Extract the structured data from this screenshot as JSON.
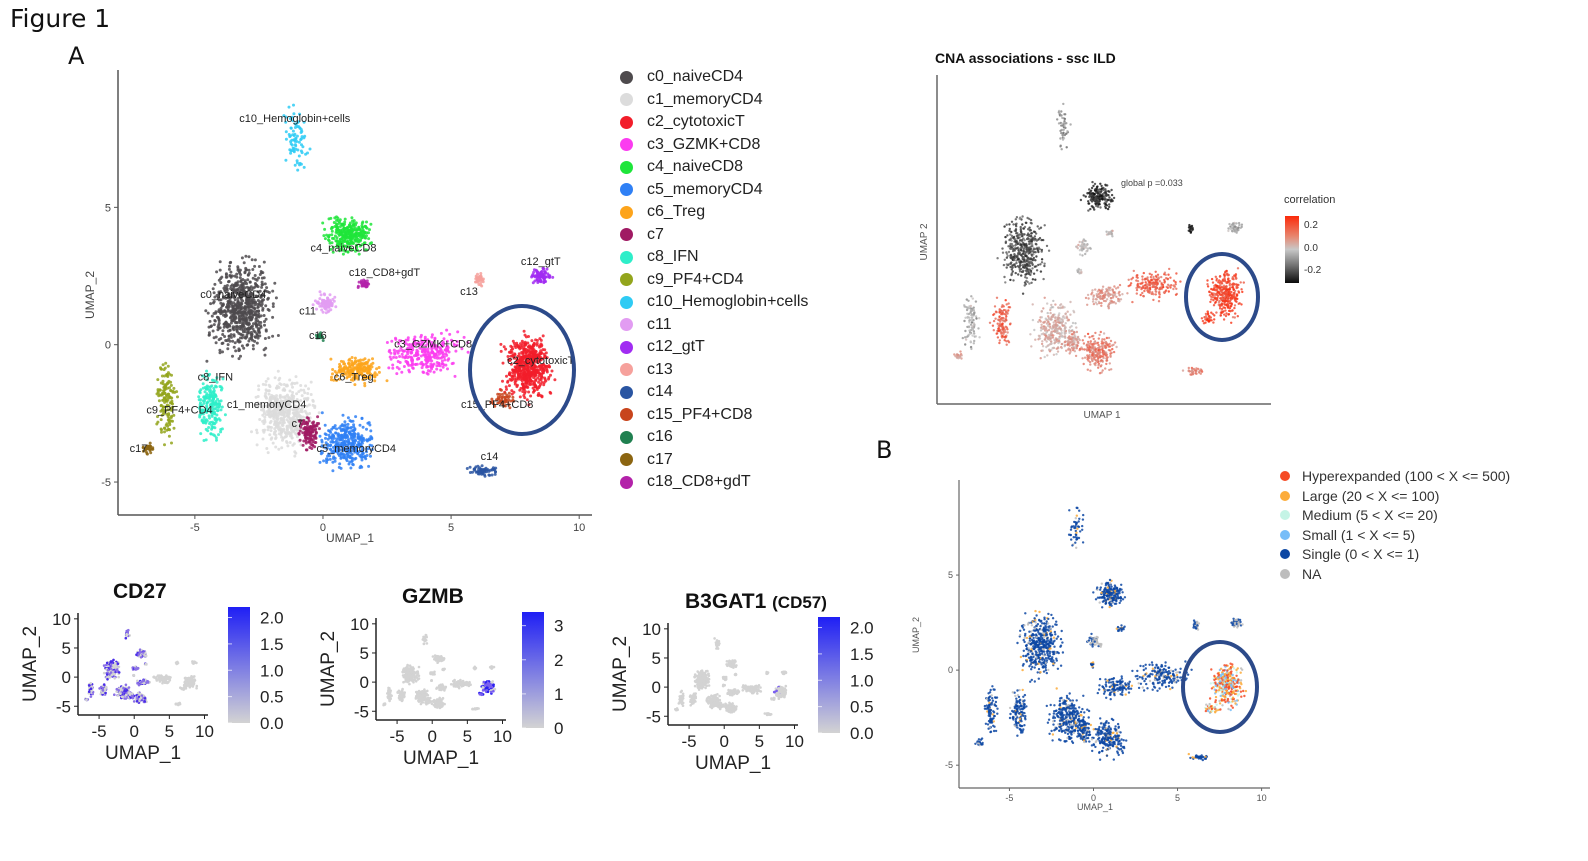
{
  "figure": {
    "title": "Figure 1",
    "panel_a_label": "A",
    "panel_b_label": "B"
  },
  "chart_data": [
    {
      "id": "umap-clusters",
      "type": "scatter",
      "title": "",
      "xlabel": "UMAP_1",
      "ylabel": "UMAP_2",
      "xlim": [
        -8,
        10.5
      ],
      "ylim": [
        -6.2,
        10
      ],
      "xticks": [
        -5,
        0,
        5,
        10
      ],
      "yticks": [
        -5,
        0,
        5
      ],
      "grid": false,
      "legend_position": "right",
      "annotation": "circle around c2_cytotoxicT cluster",
      "clusters": [
        {
          "name": "c0_naiveCD4",
          "color": "#4e4a4d",
          "cx": -3.2,
          "cy": 1.3,
          "label_x": -3.5,
          "label_y": 1.7
        },
        {
          "name": "c1_memoryCD4",
          "color": "#dcdcdc",
          "cx": -1.5,
          "cy": -2.5,
          "label_x": -2.2,
          "label_y": -2.3
        },
        {
          "name": "c2_cytotoxicT",
          "color": "#f21d2a",
          "cx": 8.0,
          "cy": -0.8,
          "label_x": 8.5,
          "label_y": -0.7
        },
        {
          "name": "c3_GZMK+CD8",
          "color": "#fb3cf0",
          "cx": 4.0,
          "cy": -0.3,
          "label_x": 4.3,
          "label_y": -0.1
        },
        {
          "name": "c4_naiveCD8",
          "color": "#1ee53a",
          "cx": 1.0,
          "cy": 4.0,
          "label_x": 0.8,
          "label_y": 3.4
        },
        {
          "name": "c5_memoryCD4",
          "color": "#2f80f5",
          "cx": 0.9,
          "cy": -3.6,
          "label_x": 1.3,
          "label_y": -3.9
        },
        {
          "name": "c6_Treg",
          "color": "#fda41b",
          "cx": 1.3,
          "cy": -0.9,
          "label_x": 1.2,
          "label_y": -1.3
        },
        {
          "name": "c7",
          "color": "#a01a63",
          "cx": -0.5,
          "cy": -3.2,
          "label_x": -1.0,
          "label_y": -3.0
        },
        {
          "name": "c8_IFN",
          "color": "#2eeec9",
          "cx": -4.4,
          "cy": -2.2,
          "label_x": -4.2,
          "label_y": -1.3
        },
        {
          "name": "c9_PF4+CD4",
          "color": "#93a51c",
          "cx": -6.1,
          "cy": -2.0,
          "label_x": -5.6,
          "label_y": -2.5
        },
        {
          "name": "c10_Hemoglobin+cells",
          "color": "#2ecbf4",
          "cx": -1.0,
          "cy": 7.5,
          "label_x": -1.1,
          "label_y": 8.1
        },
        {
          "name": "c11",
          "color": "#e29cf2",
          "cx": 0.1,
          "cy": 1.5,
          "label_x": -0.6,
          "label_y": 1.1
        },
        {
          "name": "c12_gtT",
          "color": "#a12cf2",
          "cx": 8.5,
          "cy": 2.5,
          "label_x": 8.5,
          "label_y": 2.9
        },
        {
          "name": "c13",
          "color": "#f6a19c",
          "cx": 6.1,
          "cy": 2.4,
          "label_x": 5.7,
          "label_y": 1.8
        },
        {
          "name": "c14",
          "color": "#2a55a2",
          "cx": 6.3,
          "cy": -4.6,
          "label_x": 6.5,
          "label_y": -4.2
        },
        {
          "name": "c15_PF4+CD8",
          "color": "#c8441c",
          "cx": 7.0,
          "cy": -2.0,
          "label_x": 6.8,
          "label_y": -2.3
        },
        {
          "name": "c16",
          "color": "#208050",
          "cx": -0.1,
          "cy": 0.3,
          "label_x": -0.2,
          "label_y": 0.2
        },
        {
          "name": "c17",
          "color": "#8c6511",
          "cx": -6.8,
          "cy": -3.8,
          "label_x": -7.2,
          "label_y": -3.9
        },
        {
          "name": "c18_CD8+gdT",
          "color": "#b322a9",
          "cx": 1.6,
          "cy": 2.2,
          "label_x": 2.4,
          "label_y": 2.5
        }
      ]
    },
    {
      "id": "cna-associations",
      "type": "scatter",
      "title": "CNA associations - ssc ILD",
      "xlabel": "UMAP 1",
      "ylabel": "UMAP 2",
      "annotation": "global p =0.033",
      "colorbar": {
        "title": "correlation",
        "ticks": [
          0.2,
          0.0,
          -0.2
        ],
        "range": [
          -0.3,
          0.3
        ],
        "low_color": "#0a0a0a",
        "mid_color": "#c8c8c8",
        "high_color": "#fb2a0a"
      },
      "legend_position": "right",
      "grid": false
    },
    {
      "id": "clonal-expansion",
      "type": "scatter",
      "title": "",
      "xlabel": "UMAP_1",
      "ylabel": "UMAP_2",
      "xlim": [
        -8,
        10.5
      ],
      "ylim": [
        -6.2,
        10
      ],
      "xticks": [
        -5,
        0,
        5,
        10
      ],
      "yticks": [
        -5,
        0,
        5
      ],
      "legend_position": "right",
      "grid": false,
      "categories": [
        {
          "name": "Hyperexpanded (100 < X <= 500)",
          "color": "#f54b25"
        },
        {
          "name": "Large (20 < X <= 100)",
          "color": "#fcac3b"
        },
        {
          "name": "Medium (5 < X <= 20)",
          "color": "#c5f4e6"
        },
        {
          "name": "Small (1 < X <= 5)",
          "color": "#77bdf8"
        },
        {
          "name": "Single (0 < X <= 1)",
          "color": "#0c47a3"
        },
        {
          "name": "NA",
          "color": "#bdbdbd"
        }
      ]
    },
    {
      "id": "feature-cd27",
      "type": "scatter",
      "title": "CD27",
      "xlabel": "UMAP_1",
      "ylabel": "UMAP_2",
      "xticks": [
        -5,
        0,
        5,
        10
      ],
      "yticks": [
        -5,
        0,
        5,
        10
      ],
      "colorbar": {
        "ticks": [
          "2.0",
          "1.5",
          "1.0",
          "0.5",
          "0.0"
        ],
        "range": [
          0,
          2.2
        ],
        "low_color": "#d3d3d3",
        "high_color": "#1f1ff5"
      },
      "high_region": "left"
    },
    {
      "id": "feature-gzmb",
      "type": "scatter",
      "title": "GZMB",
      "xlabel": "UMAP_1",
      "ylabel": "UMAP_2",
      "xticks": [
        -5,
        0,
        5,
        10
      ],
      "yticks": [
        -5,
        0,
        5,
        10
      ],
      "colorbar": {
        "ticks": [
          "3",
          "2",
          "1",
          "0"
        ],
        "range": [
          0,
          3.4
        ],
        "low_color": "#d3d3d3",
        "high_color": "#1f1ff5"
      },
      "high_region": "right"
    },
    {
      "id": "feature-b3gat1",
      "type": "scatter",
      "title": "B3GAT1",
      "title_suffix": "(CD57)",
      "xlabel": "UMAP_1",
      "ylabel": "UMAP_2",
      "xticks": [
        -5,
        0,
        5,
        10
      ],
      "yticks": [
        -5,
        0,
        5,
        10
      ],
      "colorbar": {
        "ticks": [
          "2.0",
          "1.5",
          "1.0",
          "0.5",
          "0.0"
        ],
        "range": [
          0,
          2.2
        ],
        "low_color": "#d3d3d3",
        "high_color": "#1f1ff5"
      },
      "high_region": "sparse-right"
    }
  ]
}
